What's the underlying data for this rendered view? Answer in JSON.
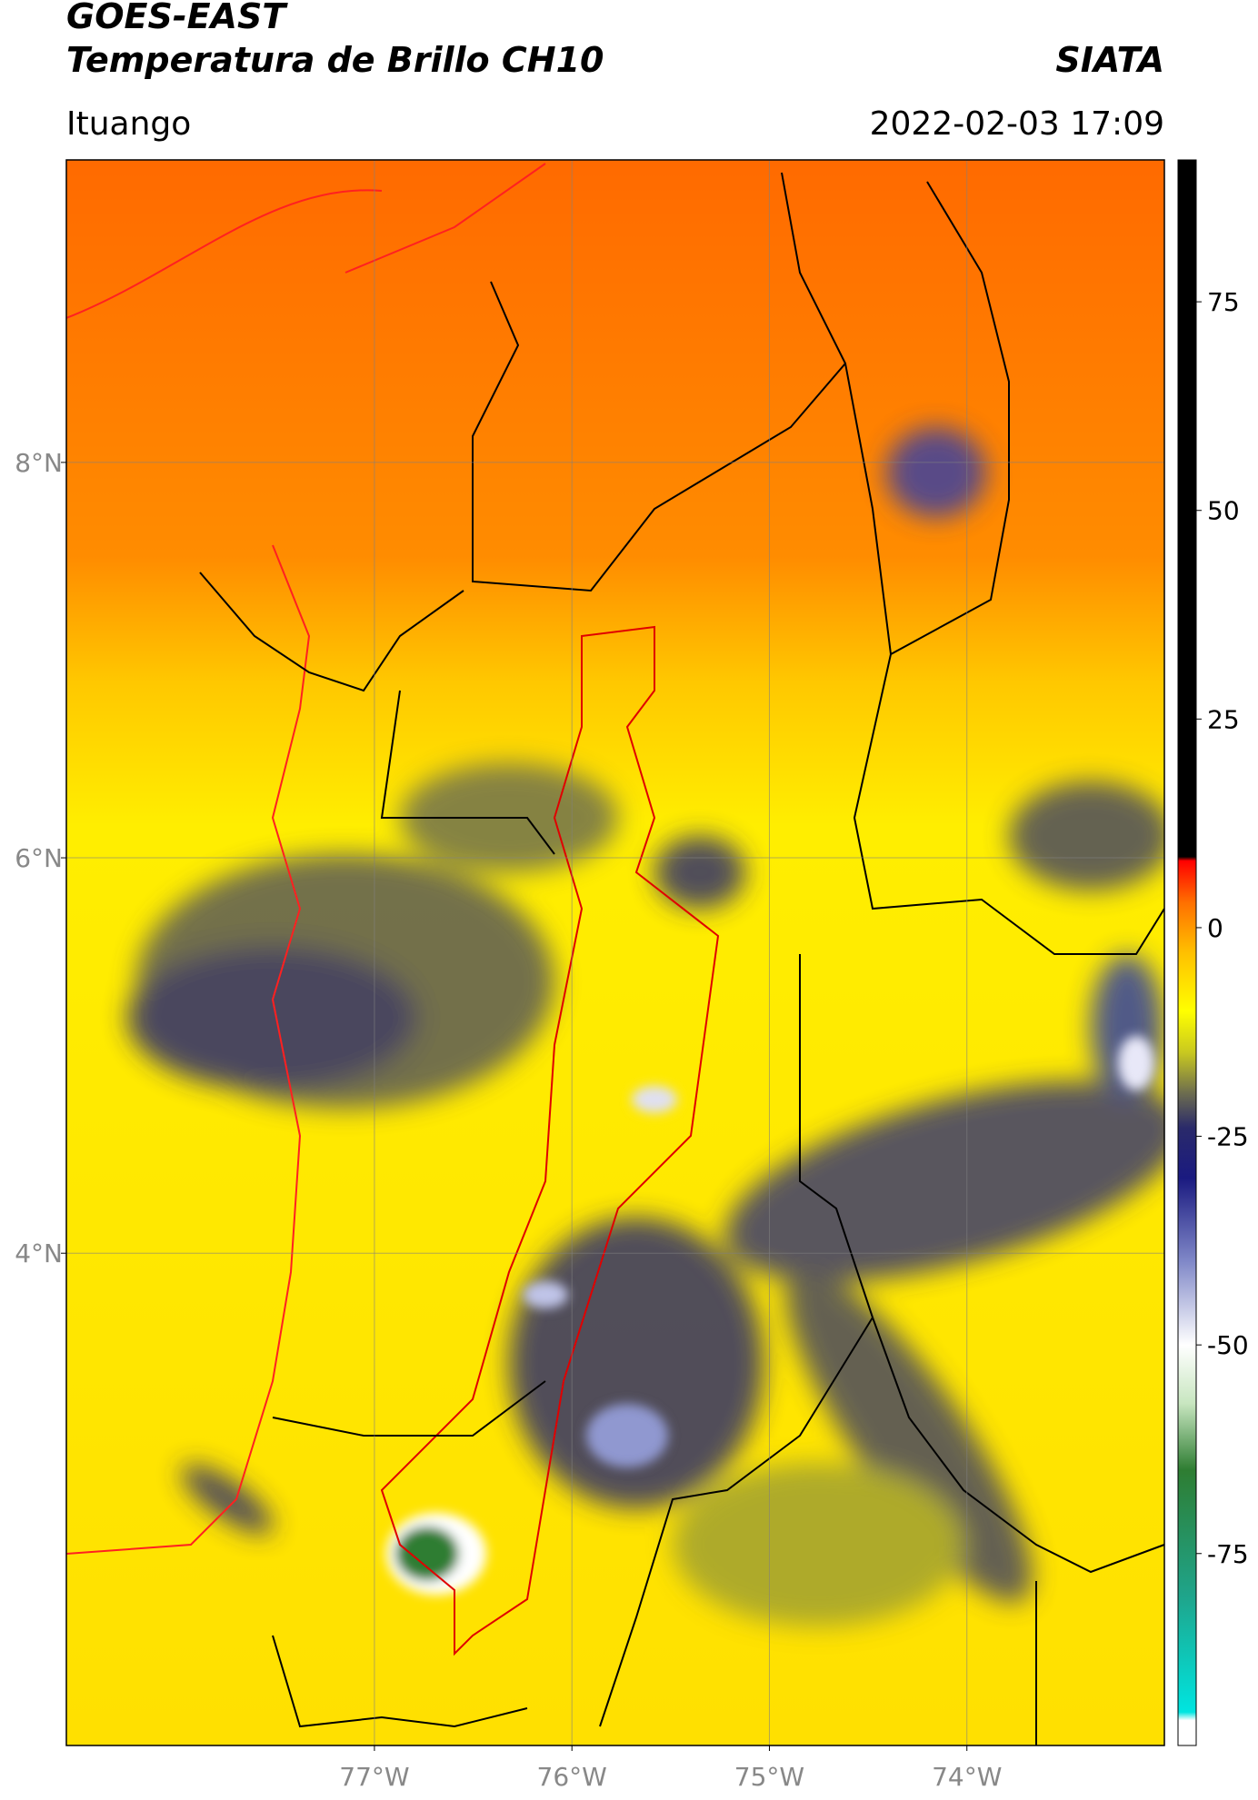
{
  "chart_data": {
    "type": "map",
    "title": "GOES-EAST",
    "subtitle": "Temperatura de Brillo CH10",
    "source": "SIATA",
    "region": "Ituango",
    "datetime": "2022-02-03 17:09",
    "xlim": [
      -78.56,
      -73.0
    ],
    "ylim": [
      1.51,
      9.53
    ],
    "xticks": [
      {
        "value": -77,
        "label": "77°W"
      },
      {
        "value": -76,
        "label": "76°W"
      },
      {
        "value": -75,
        "label": "75°W"
      },
      {
        "value": -74,
        "label": "74°W"
      }
    ],
    "yticks": [
      {
        "value": 8,
        "label": "8°N"
      },
      {
        "value": 6,
        "label": "6°N"
      },
      {
        "value": 4,
        "label": "4°N"
      }
    ],
    "grid": true,
    "colorbar": {
      "clim": [
        -98,
        92
      ],
      "ticks": [
        75,
        50,
        25,
        0,
        -25,
        -50,
        -75
      ],
      "colormap": [
        {
          "value": -98,
          "color": "#ffffff"
        },
        {
          "value": -95,
          "color": "#ffffff"
        },
        {
          "value": -94,
          "color": "#00e5e0"
        },
        {
          "value": -80,
          "color": "#1fa48a"
        },
        {
          "value": -65,
          "color": "#2e7d32"
        },
        {
          "value": -57,
          "color": "#c8e6c0"
        },
        {
          "value": -50,
          "color": "#ffffff"
        },
        {
          "value": -40,
          "color": "#8088c8"
        },
        {
          "value": -30,
          "color": "#1a1a80"
        },
        {
          "value": -24,
          "color": "#2a2a6a"
        },
        {
          "value": -20,
          "color": "#6a6a50"
        },
        {
          "value": -15,
          "color": "#c8c820"
        },
        {
          "value": -10,
          "color": "#ffff00"
        },
        {
          "value": -3,
          "color": "#ffc000"
        },
        {
          "value": 3,
          "color": "#ff7000"
        },
        {
          "value": 8,
          "color": "#ff0000"
        },
        {
          "value": 8.5,
          "color": "#000000"
        },
        {
          "value": 92,
          "color": "#000000"
        }
      ]
    }
  }
}
